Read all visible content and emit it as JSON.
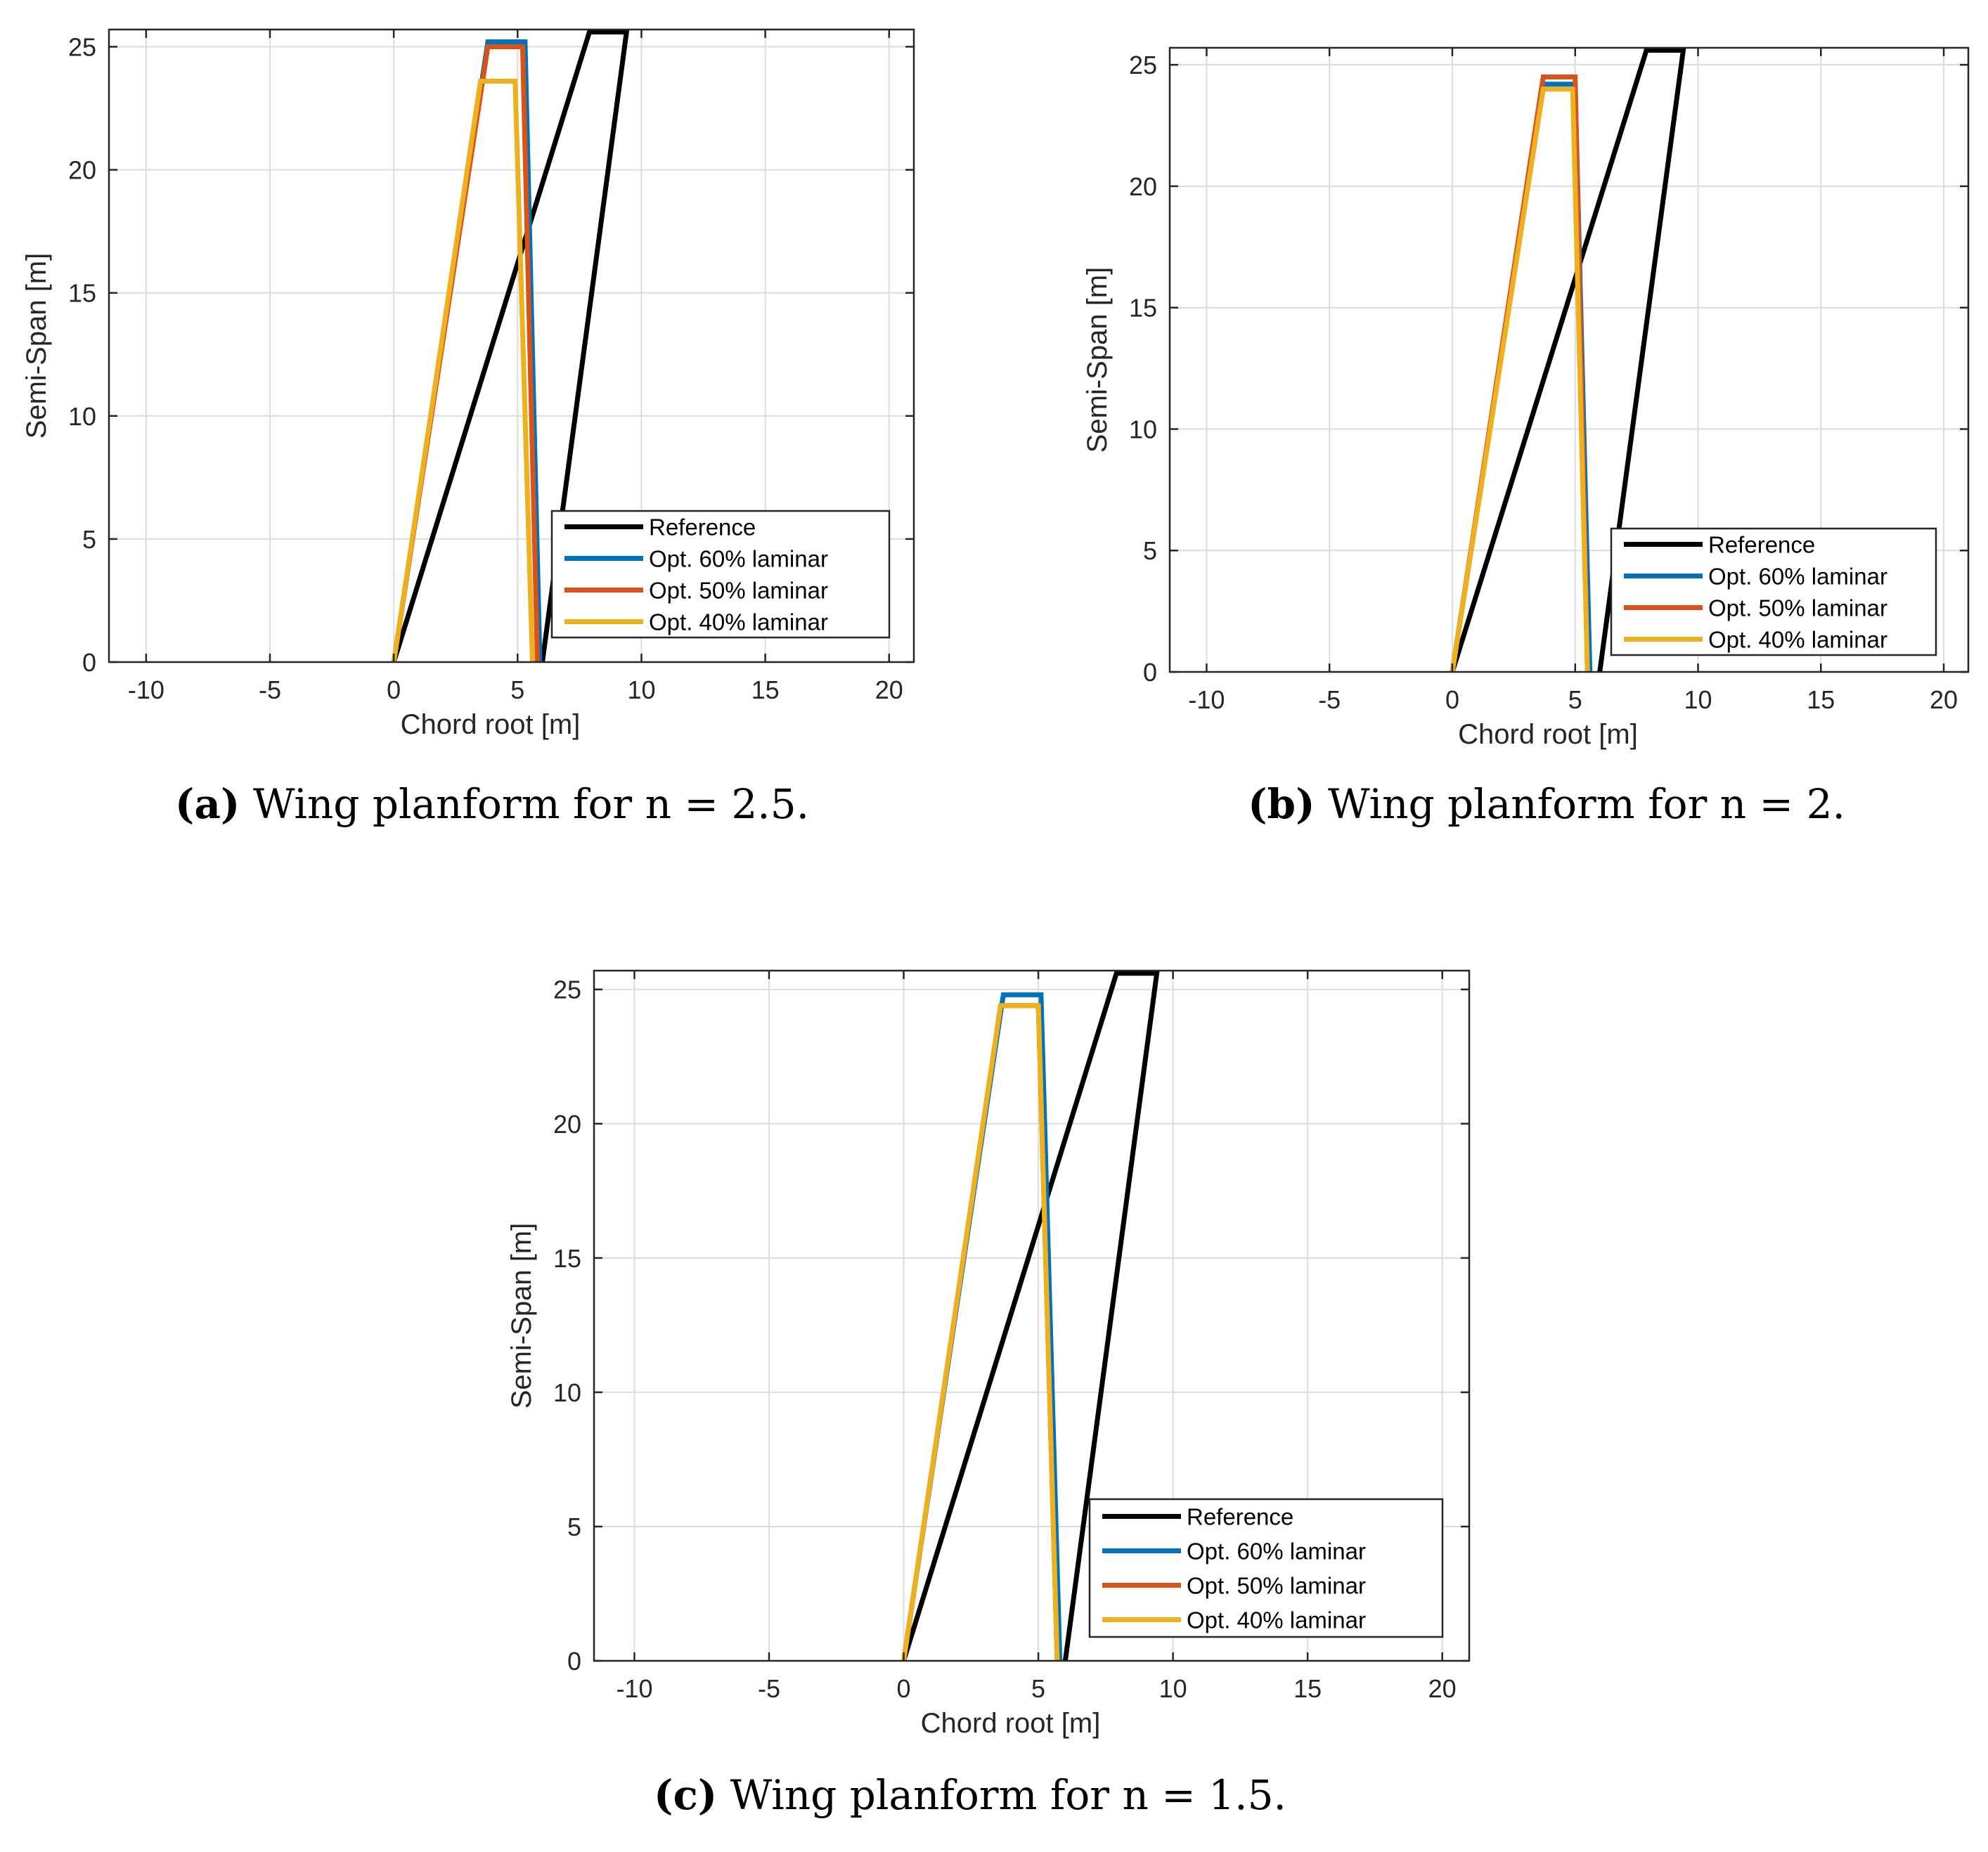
{
  "chart_data": [
    {
      "type": "line",
      "id": "a",
      "caption_tag": "(a)",
      "caption_text": "Wing planform for n = 2.5.",
      "xlabel": "Chord root [m]",
      "ylabel": "Semi-Span [m]",
      "xlim": [
        -11.5,
        21
      ],
      "ylim": [
        0,
        25.7
      ],
      "xticks": [
        -10,
        -5,
        0,
        5,
        10,
        15,
        20
      ],
      "xtick_labels": [
        "-10",
        "-5",
        "0",
        "5",
        "10",
        "15",
        "20"
      ],
      "yticks": [
        0,
        5,
        10,
        15,
        20,
        25
      ],
      "ytick_labels": [
        "0",
        "5",
        "10",
        "15",
        "20",
        "25"
      ],
      "grid": true,
      "legend_position": "lower-right",
      "series": [
        {
          "name": "Reference",
          "color": "#000000",
          "x": [
            0,
            7.9,
            9.4,
            6.0
          ],
          "y": [
            0,
            25.6,
            25.6,
            0
          ]
        },
        {
          "name": "Opt. 60% laminar",
          "color": "#0072BD",
          "x": [
            0,
            3.8,
            5.3,
            5.9
          ],
          "y": [
            0,
            25.2,
            25.2,
            0
          ]
        },
        {
          "name": "Opt. 50% laminar",
          "color": "#D95319",
          "x": [
            0,
            3.8,
            5.2,
            5.8
          ],
          "y": [
            0,
            25.0,
            25.0,
            0
          ]
        },
        {
          "name": "Opt. 40% laminar",
          "color": "#EDB120",
          "x": [
            0,
            3.5,
            4.9,
            5.6
          ],
          "y": [
            0,
            23.6,
            23.6,
            0
          ]
        }
      ]
    },
    {
      "type": "line",
      "id": "b",
      "caption_tag": "(b)",
      "caption_text": "Wing planform for n = 2.",
      "xlabel": "Chord root [m]",
      "ylabel": "Semi-Span [m]",
      "xlim": [
        -11.5,
        21
      ],
      "ylim": [
        0,
        25.7
      ],
      "xticks": [
        -10,
        -5,
        0,
        5,
        10,
        15,
        20
      ],
      "xtick_labels": [
        "-10",
        "-5",
        "0",
        "5",
        "10",
        "15",
        "20"
      ],
      "yticks": [
        0,
        5,
        10,
        15,
        20,
        25
      ],
      "ytick_labels": [
        "0",
        "5",
        "10",
        "15",
        "20",
        "25"
      ],
      "grid": true,
      "legend_position": "lower-right",
      "series": [
        {
          "name": "Reference",
          "color": "#000000",
          "x": [
            0,
            7.9,
            9.4,
            6.0
          ],
          "y": [
            0,
            25.6,
            25.6,
            0
          ]
        },
        {
          "name": "Opt. 60% laminar",
          "color": "#0072BD",
          "x": [
            0,
            3.7,
            5.0,
            5.6
          ],
          "y": [
            0,
            24.2,
            24.2,
            0
          ]
        },
        {
          "name": "Opt. 50% laminar",
          "color": "#D95319",
          "x": [
            0,
            3.7,
            5.0,
            5.5
          ],
          "y": [
            0,
            24.5,
            24.5,
            0
          ]
        },
        {
          "name": "Opt. 40% laminar",
          "color": "#EDB120",
          "x": [
            0,
            3.7,
            4.9,
            5.5
          ],
          "y": [
            0,
            24.0,
            24.0,
            0
          ]
        }
      ]
    },
    {
      "type": "line",
      "id": "c",
      "caption_tag": "(c)",
      "caption_text": "Wing planform for n = 1.5.",
      "xlabel": "Chord root [m]",
      "ylabel": "Semi-Span [m]",
      "xlim": [
        -11.5,
        21
      ],
      "ylim": [
        0,
        25.7
      ],
      "xticks": [
        -10,
        -5,
        0,
        5,
        10,
        15,
        20
      ],
      "xtick_labels": [
        "-10",
        "-5",
        "0",
        "5",
        "10",
        "15",
        "20"
      ],
      "yticks": [
        0,
        5,
        10,
        15,
        20,
        25
      ],
      "ytick_labels": [
        "0",
        "5",
        "10",
        "15",
        "20",
        "25"
      ],
      "grid": true,
      "legend_position": "lower-right",
      "series": [
        {
          "name": "Reference",
          "color": "#000000",
          "x": [
            0,
            7.9,
            9.4,
            6.0
          ],
          "y": [
            0,
            25.6,
            25.6,
            0
          ]
        },
        {
          "name": "Opt. 60% laminar",
          "color": "#0072BD",
          "x": [
            0,
            3.7,
            5.1,
            5.8
          ],
          "y": [
            0,
            24.8,
            24.8,
            0
          ]
        },
        {
          "name": "Opt. 50% laminar",
          "color": "#D95319",
          "x": [
            0,
            3.6,
            5.0,
            5.7
          ],
          "y": [
            0,
            24.4,
            24.4,
            0
          ]
        },
        {
          "name": "Opt. 40% laminar",
          "color": "#EDB120",
          "x": [
            0,
            3.6,
            5.0,
            5.7
          ],
          "y": [
            0,
            24.4,
            24.4,
            0
          ]
        }
      ]
    }
  ]
}
